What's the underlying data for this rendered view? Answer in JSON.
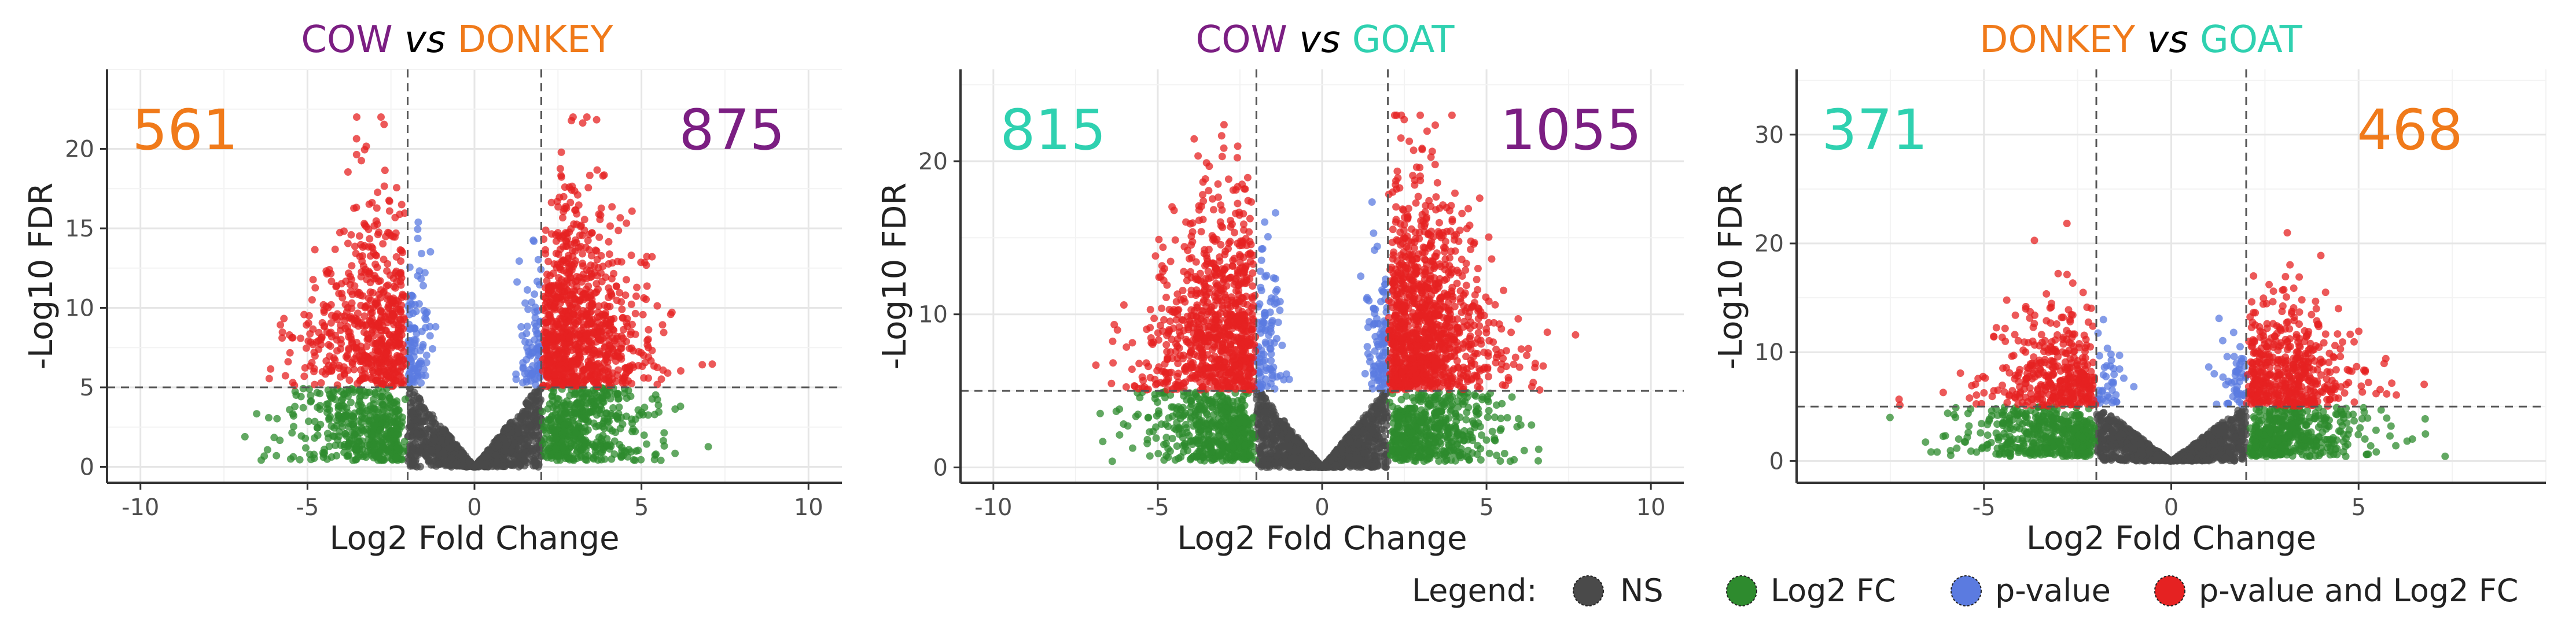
{
  "colors": {
    "cow": "#7B1E82",
    "donkey": "#F07A1A",
    "goat": "#2FD1B0",
    "ns": "#4a4a4a",
    "log2fc": "#2E8B2E",
    "pvalue": "#5B7BE0",
    "both": "#E52222"
  },
  "legend": {
    "title": "Legend:",
    "items": [
      {
        "key": "ns",
        "label": "NS"
      },
      {
        "key": "log2fc",
        "label": "Log2 FC"
      },
      {
        "key": "pvalue",
        "label": "p-value"
      },
      {
        "key": "both",
        "label": "p-value and Log2 FC"
      }
    ]
  },
  "chart_data": [
    {
      "type": "scatter",
      "title_parts": [
        {
          "text": "COW",
          "color": "#7B1E82",
          "italic": false
        },
        {
          "text": " vs ",
          "color": "#000000",
          "italic": true
        },
        {
          "text": "DONKEY",
          "color": "#F07A1A",
          "italic": false
        }
      ],
      "xlabel": "Log2 Fold Change",
      "ylabel": "-Log10 FDR",
      "xlim": [
        -11,
        11
      ],
      "ylim": [
        -1,
        25
      ],
      "xticks": [
        -10,
        -5,
        0,
        5,
        10
      ],
      "yticks": [
        0,
        5,
        10,
        15,
        20
      ],
      "fc_cutoff": 2,
      "fdr_cutoff": 5,
      "count_left": {
        "value": "561",
        "color": "#F07A1A"
      },
      "count_right": {
        "value": "875",
        "color": "#7B1E82"
      },
      "sim": {
        "seed": 11,
        "n_ns": 1100,
        "n_fc": 900,
        "n_pv": 180,
        "n_both_left": 561,
        "n_both_right": 875,
        "xspread": 2.6,
        "ypeak": 13,
        "xmax": 8.3
      }
    },
    {
      "type": "scatter",
      "title_parts": [
        {
          "text": "COW",
          "color": "#7B1E82",
          "italic": false
        },
        {
          "text": " vs ",
          "color": "#000000",
          "italic": true
        },
        {
          "text": "GOAT",
          "color": "#2FD1B0",
          "italic": false
        }
      ],
      "xlabel": "Log2 Fold Change",
      "ylabel": "-Log10 FDR",
      "xlim": [
        -11,
        11
      ],
      "ylim": [
        -1,
        26
      ],
      "xticks": [
        -10,
        -5,
        0,
        5,
        10
      ],
      "yticks": [
        0,
        10,
        20
      ],
      "fc_cutoff": 2,
      "fdr_cutoff": 5,
      "count_left": {
        "value": "815",
        "color": "#2FD1B0"
      },
      "count_right": {
        "value": "1055",
        "color": "#7B1E82"
      },
      "sim": {
        "seed": 23,
        "n_ns": 1200,
        "n_fc": 1000,
        "n_pv": 200,
        "n_both_left": 815,
        "n_both_right": 1055,
        "xspread": 2.7,
        "ypeak": 15,
        "xmax": 8.7
      }
    },
    {
      "type": "scatter",
      "title_parts": [
        {
          "text": "DONKEY",
          "color": "#F07A1A",
          "italic": false
        },
        {
          "text": " vs ",
          "color": "#000000",
          "italic": true
        },
        {
          "text": "GOAT",
          "color": "#2FD1B0",
          "italic": false
        }
      ],
      "xlabel": "Log2 Fold Change",
      "ylabel": "-Log10 FDR",
      "xlim": [
        -10,
        10
      ],
      "ylim": [
        -2,
        36
      ],
      "xticks": [
        -5,
        0,
        5
      ],
      "yticks": [
        0,
        10,
        20,
        30
      ],
      "fc_cutoff": 2,
      "fdr_cutoff": 5,
      "count_left": {
        "value": "371",
        "color": "#2FD1B0"
      },
      "count_right": {
        "value": "468",
        "color": "#F07A1A"
      },
      "sim": {
        "seed": 37,
        "n_ns": 1000,
        "n_fc": 900,
        "n_pv": 90,
        "n_both_left": 371,
        "n_both_right": 468,
        "xspread": 2.4,
        "ypeak": 11,
        "xmax": 7.6
      }
    }
  ]
}
